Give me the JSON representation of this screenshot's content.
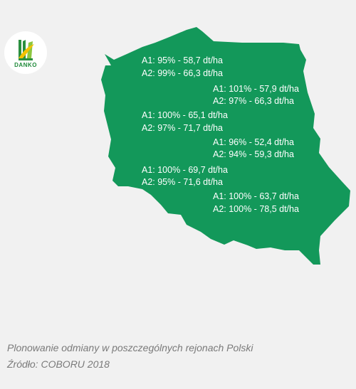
{
  "logo": {
    "brand": "DANKO",
    "icon": "danko-leaf-logo"
  },
  "map": {
    "fill_color": "#13985a",
    "regions": [
      {
        "a1": "A1: 95% - 58,7 dt/ha",
        "a2": "A2: 99% - 66,3 dt/ha"
      },
      {
        "a1": "A1: 101% - 57,9 dt/ha",
        "a2": "A2: 97% - 66,3 dt/ha"
      },
      {
        "a1": "A1: 100% - 65,1 dt/ha",
        "a2": "A2: 97% - 71,7 dt/ha"
      },
      {
        "a1": "A1: 96% - 52,4 dt/ha",
        "a2": "A2: 94% - 59,3 dt/ha"
      },
      {
        "a1": "A1: 100% - 69,7 dt/ha",
        "a2": "A2: 95% - 71,6 dt/ha"
      },
      {
        "a1": "A1: 100% - 63,7 dt/ha",
        "a2": "A2: 100% - 78,5 dt/ha"
      }
    ]
  },
  "caption": {
    "line1": "Plonowanie odmiany w poszczególnych rejonach Polski",
    "line2": "Źródło: COBORU 2018"
  }
}
